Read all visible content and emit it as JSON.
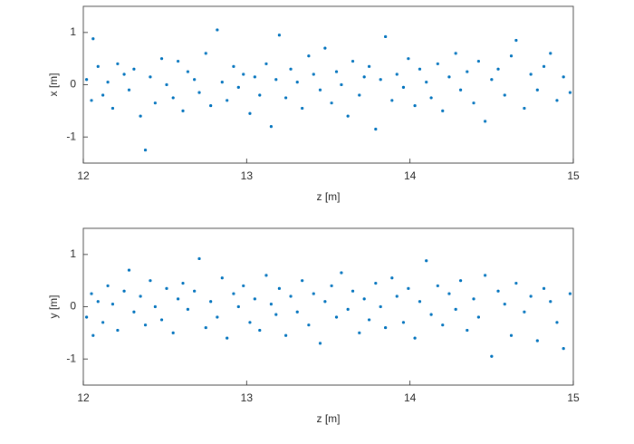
{
  "chart_data": [
    {
      "type": "scatter",
      "xlabel": "z [m]",
      "ylabel": "x [m]",
      "xlim": [
        12,
        15
      ],
      "ylim": [
        -1.5,
        1.5
      ],
      "xticks": [
        12,
        13,
        14,
        15
      ],
      "yticks": [
        -1,
        0,
        1
      ],
      "color": "#0072bd",
      "x": [
        12.02,
        12.05,
        12.06,
        12.09,
        12.12,
        12.15,
        12.18,
        12.21,
        12.25,
        12.28,
        12.31,
        12.35,
        12.38,
        12.41,
        12.44,
        12.48,
        12.51,
        12.55,
        12.58,
        12.61,
        12.64,
        12.68,
        12.71,
        12.75,
        12.78,
        12.82,
        12.85,
        12.88,
        12.92,
        12.95,
        12.98,
        13.02,
        13.05,
        13.08,
        13.12,
        13.15,
        13.18,
        13.2,
        13.24,
        13.27,
        13.31,
        13.34,
        13.38,
        13.41,
        13.45,
        13.48,
        13.52,
        13.55,
        13.58,
        13.62,
        13.65,
        13.69,
        13.72,
        13.75,
        13.79,
        13.82,
        13.85,
        13.89,
        13.92,
        13.96,
        13.99,
        14.03,
        14.06,
        14.1,
        14.13,
        14.17,
        14.2,
        14.24,
        14.28,
        14.31,
        14.35,
        14.39,
        14.42,
        14.46,
        14.5,
        14.54,
        14.58,
        14.62,
        14.65,
        14.7,
        14.74,
        14.78,
        14.82,
        14.86,
        14.9,
        14.94,
        14.98
      ],
      "y": [
        0.1,
        -0.3,
        0.88,
        0.35,
        -0.2,
        0.05,
        -0.45,
        0.4,
        0.2,
        -0.1,
        0.3,
        -0.6,
        -1.25,
        0.15,
        -0.35,
        0.5,
        0.0,
        -0.25,
        0.45,
        -0.5,
        0.25,
        0.1,
        -0.15,
        0.6,
        -0.4,
        1.05,
        0.05,
        -0.3,
        0.35,
        -0.05,
        0.2,
        -0.55,
        0.15,
        -0.2,
        0.4,
        -0.8,
        0.1,
        0.95,
        -0.25,
        0.3,
        0.05,
        -0.45,
        0.55,
        0.2,
        -0.1,
        0.7,
        -0.35,
        0.25,
        0.0,
        -0.6,
        0.45,
        -0.2,
        0.15,
        0.35,
        -0.85,
        0.1,
        0.92,
        -0.3,
        0.2,
        -0.05,
        0.5,
        -0.4,
        0.3,
        0.05,
        -0.25,
        0.4,
        -0.5,
        0.15,
        0.6,
        -0.1,
        0.25,
        -0.35,
        0.45,
        -0.7,
        0.1,
        0.3,
        -0.2,
        0.55,
        0.85,
        -0.45,
        0.2,
        -0.1,
        0.35,
        0.6,
        -0.3,
        0.15,
        -0.15
      ]
    },
    {
      "type": "scatter",
      "xlabel": "z [m]",
      "ylabel": "y [m]",
      "xlim": [
        12,
        15
      ],
      "ylim": [
        -1.5,
        1.5
      ],
      "xticks": [
        12,
        13,
        14,
        15
      ],
      "yticks": [
        -1,
        0,
        1
      ],
      "color": "#0072bd",
      "x": [
        12.02,
        12.05,
        12.06,
        12.09,
        12.12,
        12.15,
        12.18,
        12.21,
        12.25,
        12.28,
        12.31,
        12.35,
        12.38,
        12.41,
        12.44,
        12.48,
        12.51,
        12.55,
        12.58,
        12.61,
        12.64,
        12.68,
        12.71,
        12.75,
        12.78,
        12.82,
        12.85,
        12.88,
        12.92,
        12.95,
        12.98,
        13.02,
        13.05,
        13.08,
        13.12,
        13.15,
        13.18,
        13.2,
        13.24,
        13.27,
        13.31,
        13.34,
        13.38,
        13.41,
        13.45,
        13.48,
        13.52,
        13.55,
        13.58,
        13.62,
        13.65,
        13.69,
        13.72,
        13.75,
        13.79,
        13.82,
        13.85,
        13.89,
        13.92,
        13.96,
        13.99,
        14.03,
        14.06,
        14.1,
        14.13,
        14.17,
        14.2,
        14.24,
        14.28,
        14.31,
        14.35,
        14.39,
        14.42,
        14.46,
        14.5,
        14.54,
        14.58,
        14.62,
        14.65,
        14.7,
        14.74,
        14.78,
        14.82,
        14.86,
        14.9,
        14.94,
        14.98
      ],
      "y": [
        -0.2,
        0.25,
        -0.55,
        0.1,
        -0.3,
        0.4,
        0.05,
        -0.45,
        0.3,
        0.7,
        -0.1,
        0.2,
        -0.35,
        0.5,
        0.0,
        -0.25,
        0.35,
        -0.5,
        0.15,
        0.45,
        -0.05,
        0.3,
        0.92,
        -0.4,
        0.1,
        -0.2,
        0.55,
        -0.6,
        0.25,
        0.0,
        0.4,
        -0.3,
        0.15,
        -0.45,
        0.6,
        0.05,
        -0.15,
        0.35,
        -0.55,
        0.2,
        -0.1,
        0.5,
        -0.35,
        0.25,
        -0.7,
        0.1,
        0.4,
        -0.2,
        0.65,
        -0.05,
        0.3,
        -0.5,
        0.15,
        -0.25,
        0.45,
        0.0,
        -0.4,
        0.55,
        0.2,
        -0.3,
        0.35,
        -0.6,
        0.1,
        0.88,
        -0.15,
        0.4,
        -0.35,
        0.25,
        -0.05,
        0.5,
        -0.45,
        0.15,
        -0.2,
        0.6,
        -0.95,
        0.3,
        0.05,
        -0.55,
        0.45,
        -0.1,
        0.2,
        -0.65,
        0.35,
        0.1,
        -0.3,
        -0.8,
        0.25
      ]
    }
  ]
}
